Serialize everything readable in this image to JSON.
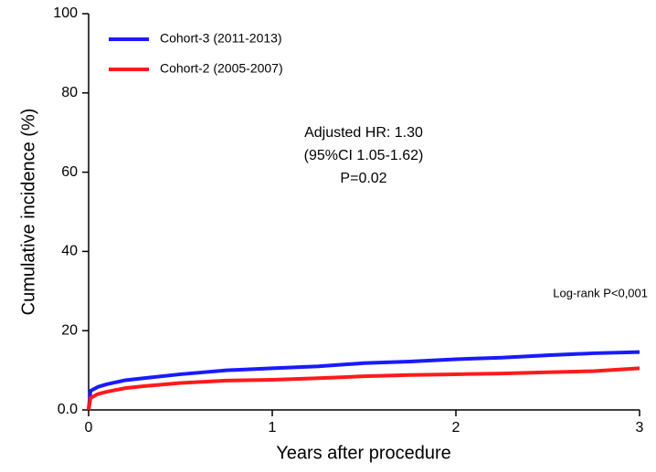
{
  "chart_data": {
    "type": "line",
    "x_label": "Years after procedure",
    "y_label": "Cumulative incidence (%)",
    "x": [
      0,
      0.01,
      0.05,
      0.1,
      0.2,
      0.3,
      0.5,
      0.75,
      1,
      1.25,
      1.5,
      1.75,
      2,
      2.25,
      2.5,
      2.75,
      3
    ],
    "series": [
      {
        "name": "Cohort-3 (2011-2013)",
        "color": "#1a1aff",
        "values": [
          0,
          4.8,
          5.8,
          6.5,
          7.5,
          8.0,
          9.0,
          10.0,
          10.5,
          11.0,
          11.8,
          12.2,
          12.8,
          13.2,
          13.8,
          14.3,
          14.6
        ]
      },
      {
        "name": "Cohort-2 (2005-2007)",
        "color": "#ff1a1a",
        "values": [
          0,
          3.0,
          4.0,
          4.6,
          5.5,
          6.0,
          6.8,
          7.4,
          7.6,
          8.0,
          8.5,
          8.8,
          9.0,
          9.2,
          9.5,
          9.8,
          10.5
        ]
      }
    ],
    "xlim": [
      0,
      3
    ],
    "xticks": [
      0,
      1,
      2,
      3
    ],
    "ylim": [
      0,
      100
    ],
    "yticks": [
      {
        "value": 0,
        "label": "0.0"
      },
      20,
      40,
      60,
      80,
      100
    ],
    "legend": "top-left",
    "annotations": [
      "Adjusted HR: 1.30",
      "(95%CI 1.05-1.62)",
      "P=0.02",
      "Log-rank P<0,001"
    ]
  }
}
